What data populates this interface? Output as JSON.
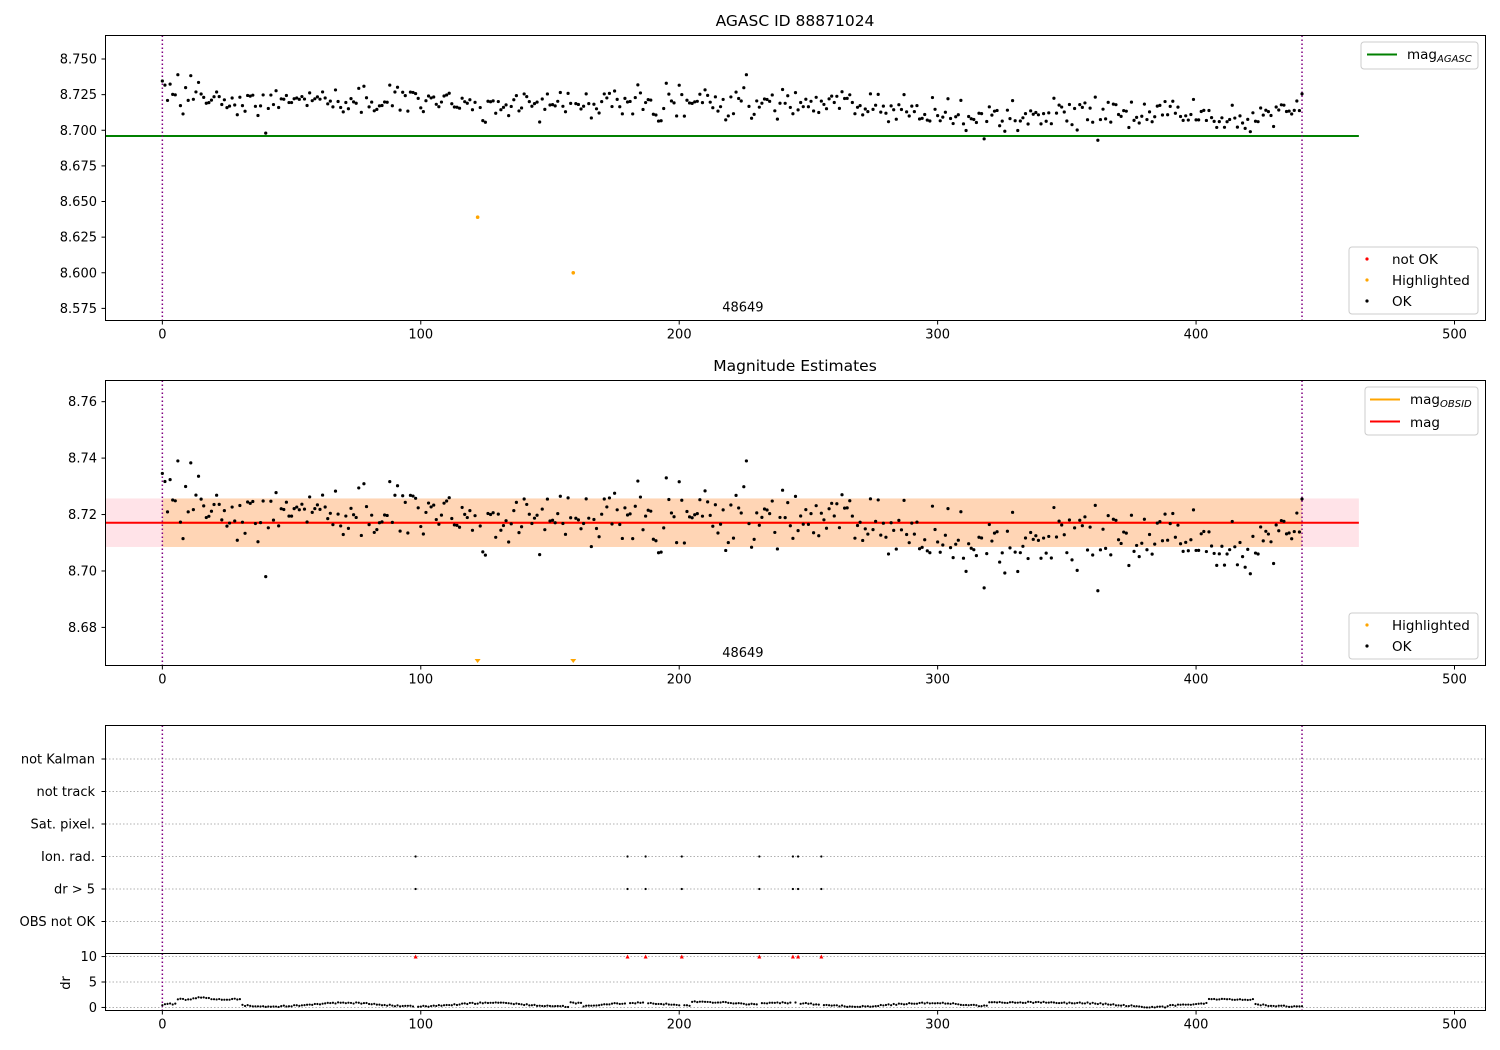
{
  "chart_data": [
    {
      "type": "scatter",
      "title": "AGASC ID 88871024",
      "xlim": [
        -22,
        512
      ],
      "ylim": [
        8.5665,
        8.7665
      ],
      "xticks": [
        0,
        100,
        200,
        300,
        400,
        500
      ],
      "yticks": [
        8.575,
        8.6,
        8.625,
        8.65,
        8.675,
        8.7,
        8.725,
        8.75
      ],
      "ytick_format": 3,
      "vlines": [
        0,
        441
      ],
      "hlines": [
        {
          "name": "mag_AGASC",
          "y": 8.696,
          "x0": -22,
          "x1": 463,
          "color": "#008000"
        }
      ],
      "annotation": {
        "text": "48649",
        "x": 220,
        "y": 8.5765
      },
      "highlighted": [
        {
          "x": 122,
          "y": 8.639
        },
        {
          "x": 159,
          "y": 8.6
        }
      ],
      "legend_lines": [
        {
          "main": "mag",
          "sub": "AGASC",
          "color": "#008000"
        }
      ],
      "legend_points": [
        {
          "label": "not OK",
          "color": "#ff0000"
        },
        {
          "label": "Highlighted",
          "color": "#ffa500"
        },
        {
          "label": "OK",
          "color": "#000000"
        }
      ]
    },
    {
      "type": "scatter",
      "title": "Magnitude Estimates",
      "xlim": [
        -22,
        512
      ],
      "ylim": [
        8.6665,
        8.7675
      ],
      "xticks": [
        0,
        100,
        200,
        300,
        400,
        500
      ],
      "yticks": [
        8.68,
        8.7,
        8.72,
        8.74,
        8.76
      ],
      "ytick_format": 2,
      "vlines": [
        0,
        441
      ],
      "band": {
        "y0": 8.7085,
        "y1": 8.7257,
        "x0": -22,
        "x1": 463
      },
      "inner_band": {
        "y0": 8.7085,
        "y1": 8.7257,
        "x0": 0,
        "x1": 441
      },
      "mag_line": {
        "y": 8.7171,
        "x0": -22,
        "x1": 463,
        "color": "#ff0000"
      },
      "obsid_line": {
        "y": 8.7171,
        "x0": 0,
        "x1": 441,
        "color": "#ffa500"
      },
      "annotation": {
        "text": "48649",
        "x": 220,
        "y": 8.668
      },
      "highlighted_markers": [
        {
          "x": 122
        },
        {
          "x": 159
        }
      ],
      "legend_lines": [
        {
          "main": "mag",
          "sub": "OBSID",
          "color": "#ffa500"
        },
        {
          "main": "mag",
          "sub": "",
          "color": "#ff0000"
        }
      ],
      "legend_points": [
        {
          "label": "Highlighted",
          "color": "#ffa500"
        },
        {
          "label": "OK",
          "color": "#000000"
        }
      ]
    },
    {
      "type": "scatter",
      "xlim": [
        -22,
        512
      ],
      "flag_labels": [
        "not Kalman",
        "not track",
        "Sat. pixel.",
        "Ion. rad.",
        "dr > 5",
        "OBS not OK"
      ],
      "flags": {
        "Ion. rad.": [
          98,
          180,
          187,
          201,
          231,
          244,
          246,
          255
        ],
        "dr > 5": [
          98,
          180,
          187,
          201,
          231,
          244,
          246,
          255
        ]
      },
      "vlines": [
        0,
        441
      ],
      "xticks": [
        0,
        100,
        200,
        300,
        400,
        500
      ],
      "dr": {
        "ylabel": "dr",
        "ylim": [
          -0.6,
          10.6
        ],
        "yticks": [
          0,
          5,
          10
        ],
        "clipped_at": 10,
        "clipped_x": [
          98,
          180,
          187,
          201,
          231,
          244,
          246,
          255
        ]
      }
    }
  ]
}
